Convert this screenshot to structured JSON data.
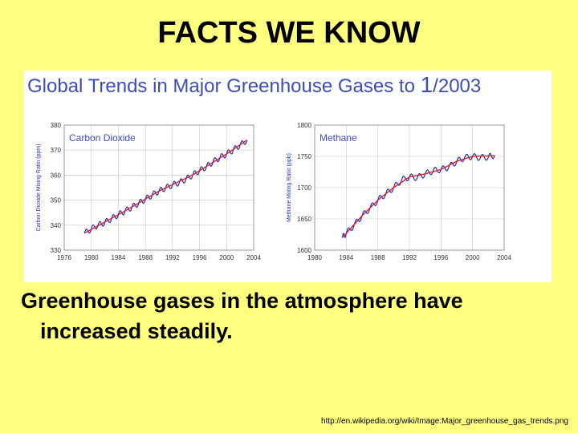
{
  "slide": {
    "title": "FACTS WE KNOW",
    "body_line1": "Greenhouse gases in the atmosphere have",
    "body_line2": "increased steadily.",
    "source": "http://en.wikipedia.org/wiki/Image:Major_greenhouse_gas_trends.png",
    "background_color": "#FFFF7F"
  },
  "figure": {
    "title_prefix": "Global Trends in Major Greenhouse Gases to ",
    "title_big": "1",
    "title_suffix": "/2003",
    "title_color": "#3C4DB8"
  },
  "chart_data": [
    {
      "type": "line",
      "title": "Carbon Dioxide",
      "ylabel": "Carbon Dioxide Mixing Ratio (ppm)",
      "xlim": [
        1976,
        2004
      ],
      "ylim": [
        330,
        380
      ],
      "xticks": [
        "1976",
        "1980",
        "1984",
        "1988",
        "1992",
        "1996",
        "2000",
        "2004"
      ],
      "yticks": [
        "330",
        "340",
        "350",
        "360",
        "370",
        "380"
      ],
      "grid": true,
      "series": [
        {
          "role": "monthly",
          "color": "#2030C0",
          "x": [
            1979.0,
            1980.0,
            1981.0,
            1982.0,
            1983.0,
            1984.0,
            1985.0,
            1986.0,
            1987.0,
            1988.0,
            1989.0,
            1990.0,
            1991.0,
            1992.0,
            1993.0,
            1994.0,
            1995.0,
            1996.0,
            1997.0,
            1998.0,
            1999.0,
            2000.0,
            2001.0,
            2002.0,
            2003.0
          ],
          "y": [
            336.8,
            338.5,
            340.0,
            341.1,
            342.6,
            344.2,
            345.7,
            347.2,
            348.7,
            350.4,
            352.1,
            353.6,
            354.9,
            356.1,
            357.0,
            358.4,
            360.1,
            361.8,
            363.3,
            365.3,
            367.0,
            368.5,
            370.1,
            372.0,
            374.0
          ],
          "seasonal_amplitude": 1.2
        },
        {
          "role": "trend",
          "color": "#E02020",
          "x": [
            1979.0,
            1985.0,
            1990.0,
            1995.0,
            2000.0,
            2003.0
          ],
          "y": [
            336.8,
            345.7,
            353.6,
            360.1,
            368.5,
            374.0
          ]
        }
      ]
    },
    {
      "type": "line",
      "title": "Methane",
      "ylabel": "Methane Mixing Ratio (ppb)",
      "xlim": [
        1980,
        2004
      ],
      "ylim": [
        1600,
        1800
      ],
      "xticks": [
        "1980",
        "1984",
        "1988",
        "1992",
        "1996",
        "2000",
        "2004"
      ],
      "yticks": [
        "1600",
        "1650",
        "1700",
        "1750",
        "1800"
      ],
      "grid": true,
      "series": [
        {
          "role": "monthly",
          "color": "#2030C0",
          "x": [
            1983.5,
            1984.0,
            1985.0,
            1986.0,
            1987.0,
            1988.0,
            1989.0,
            1990.0,
            1991.0,
            1992.0,
            1993.0,
            1994.0,
            1995.0,
            1996.0,
            1997.0,
            1998.0,
            1999.0,
            2000.0,
            2001.0,
            2002.0,
            2002.8
          ],
          "y": [
            1620,
            1627,
            1640,
            1655,
            1667,
            1680,
            1690,
            1700,
            1712,
            1717,
            1716,
            1722,
            1727,
            1729,
            1733,
            1742,
            1748,
            1750,
            1748,
            1749,
            1752
          ],
          "seasonal_amplitude": 5
        },
        {
          "role": "trend",
          "color": "#E02020",
          "x": [
            1983.5,
            1986.0,
            1988.0,
            1990.0,
            1992.0,
            1994.0,
            1996.0,
            1998.0,
            2000.0,
            2002.8
          ],
          "y": [
            1620,
            1655,
            1680,
            1700,
            1717,
            1722,
            1729,
            1742,
            1750,
            1751
          ]
        }
      ]
    }
  ]
}
